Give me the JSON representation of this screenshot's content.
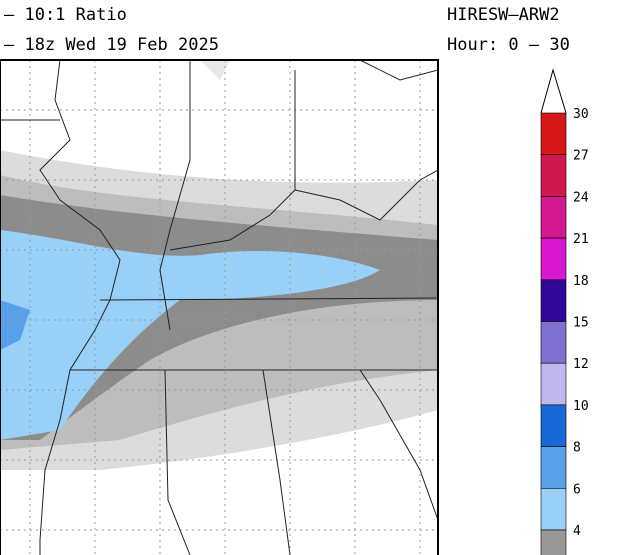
{
  "header": {
    "lines": [
      "– 10:1 Ratio",
      "– 18z Wed 19 Feb 2025"
    ],
    "model": "HIRESW–ARW2",
    "hours": "Hour: 0 – 30"
  },
  "legend": {
    "levels": [
      30,
      27,
      24,
      21,
      18,
      15,
      12,
      10,
      8,
      6,
      4
    ],
    "colors": [
      "#d81818",
      "#d01850",
      "#d41890",
      "#d818d0",
      "#300898",
      "#8070d0",
      "#c0b8ec",
      "#1868d8",
      "#58a0e8",
      "#98d0f8",
      "#989898"
    ]
  }
}
